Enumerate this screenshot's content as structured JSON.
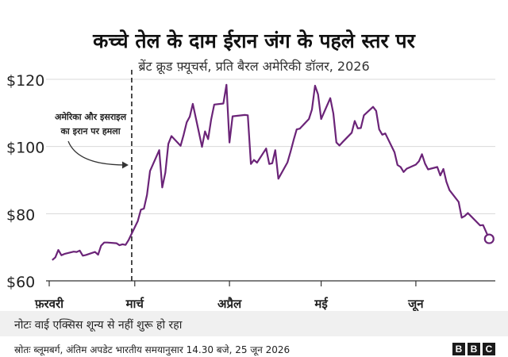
{
  "header": {
    "title": "कच्चे तेल के दाम ईरान जंग के पहले स्तर पर",
    "subtitle": "ब्रेंट क्रूड फ़्यूचर्स, प्रति बैरल अमेरिकी डॉलर, 2026"
  },
  "footer": {
    "note": "नोटः वाई एक्सिस शून्य से नहीं शुरू हो रहा",
    "source": "स्रोतः ब्लूमबर्ग, अंतिम अपडेट भारतीय समयानुसार 14.30 बजे, 25 जून 2026",
    "logo_letters": [
      "B",
      "B",
      "C"
    ]
  },
  "colors": {
    "line": "#6b2478",
    "text": "#222222",
    "grid": "#d8d8d8",
    "note_bg": "#f0f0f0"
  },
  "chart_data": {
    "type": "line",
    "title": "कच्चे तेल के दाम ईरान जंग के पहले स्तर पर",
    "subtitle": "ब्रेंट क्रूड फ़्यूचर्स, प्रति बैरल अमेरिकी डॉलर, 2026",
    "ylim": [
      60,
      120
    ],
    "yticks": [
      60,
      80,
      100,
      120
    ],
    "ytick_labels": [
      "$60",
      "$80",
      "$100",
      "$120"
    ],
    "x_range": [
      "2026-02-01",
      "2026-06-27"
    ],
    "x_ticks": [
      {
        "date": "2026-02-01",
        "label": "फ़रवरी"
      },
      {
        "date": "2026-03-01",
        "label": "मार्च"
      },
      {
        "date": "2026-04-01",
        "label": "अप्रैल"
      },
      {
        "date": "2026-05-01",
        "label": "मई"
      },
      {
        "date": "2026-06-01",
        "label": "जून"
      }
    ],
    "grid": true,
    "annotation": {
      "date": "2026-02-28",
      "lines": [
        "अमेरिका और इसराइल",
        "का इरान पर हमला"
      ]
    },
    "series": [
      {
        "points": [
          [
            "2026-02-02",
            66.2
          ],
          [
            "2026-02-03",
            67.0
          ],
          [
            "2026-02-04",
            69.2
          ],
          [
            "2026-02-05",
            67.6
          ],
          [
            "2026-02-06",
            68.0
          ],
          [
            "2026-02-09",
            68.7
          ],
          [
            "2026-02-10",
            68.6
          ],
          [
            "2026-02-11",
            69.0
          ],
          [
            "2026-02-12",
            67.5
          ],
          [
            "2026-02-13",
            67.7
          ],
          [
            "2026-02-16",
            68.6
          ],
          [
            "2026-02-17",
            67.8
          ],
          [
            "2026-02-18",
            70.5
          ],
          [
            "2026-02-19",
            71.4
          ],
          [
            "2026-02-20",
            71.4
          ],
          [
            "2026-02-23",
            71.2
          ],
          [
            "2026-02-24",
            70.6
          ],
          [
            "2026-02-25",
            70.9
          ],
          [
            "2026-02-26",
            70.7
          ],
          [
            "2026-02-27",
            72.2
          ],
          [
            "2026-03-02",
            77.8
          ],
          [
            "2026-03-03",
            81.2
          ],
          [
            "2026-03-04",
            81.5
          ],
          [
            "2026-03-05",
            85.6
          ],
          [
            "2026-03-06",
            92.7
          ],
          [
            "2026-03-09",
            98.9
          ],
          [
            "2026-03-10",
            87.8
          ],
          [
            "2026-03-11",
            92.2
          ],
          [
            "2026-03-12",
            100.8
          ],
          [
            "2026-03-13",
            103.1
          ],
          [
            "2026-03-16",
            100.2
          ],
          [
            "2026-03-17",
            103.5
          ],
          [
            "2026-03-18",
            107.2
          ],
          [
            "2026-03-19",
            108.9
          ],
          [
            "2026-03-20",
            112.7
          ],
          [
            "2026-03-23",
            99.9
          ],
          [
            "2026-03-24",
            104.5
          ],
          [
            "2026-03-25",
            102.2
          ],
          [
            "2026-03-26",
            108.0
          ],
          [
            "2026-03-27",
            112.5
          ],
          [
            "2026-03-30",
            112.8
          ],
          [
            "2026-03-31",
            118.4
          ],
          [
            "2026-04-01",
            101.2
          ],
          [
            "2026-04-02",
            109.0
          ],
          [
            "2026-04-06",
            109.4
          ],
          [
            "2026-04-07",
            109.3
          ],
          [
            "2026-04-08",
            94.8
          ],
          [
            "2026-04-09",
            96.0
          ],
          [
            "2026-04-10",
            95.2
          ],
          [
            "2026-04-13",
            99.4
          ],
          [
            "2026-04-14",
            94.8
          ],
          [
            "2026-04-15",
            95.0
          ],
          [
            "2026-04-16",
            98.9
          ],
          [
            "2026-04-17",
            90.4
          ],
          [
            "2026-04-20",
            95.3
          ],
          [
            "2026-04-21",
            98.5
          ],
          [
            "2026-04-22",
            101.9
          ],
          [
            "2026-04-23",
            105.1
          ],
          [
            "2026-04-24",
            105.3
          ],
          [
            "2026-04-27",
            108.2
          ],
          [
            "2026-04-28",
            111.0
          ],
          [
            "2026-04-29",
            118.1
          ],
          [
            "2026-04-30",
            115.5
          ],
          [
            "2026-05-01",
            108.2
          ],
          [
            "2026-05-04",
            114.4
          ],
          [
            "2026-05-05",
            109.8
          ],
          [
            "2026-05-06",
            101.2
          ],
          [
            "2026-05-07",
            100.3
          ],
          [
            "2026-05-08",
            101.3
          ],
          [
            "2026-05-11",
            104.1
          ],
          [
            "2026-05-12",
            107.6
          ],
          [
            "2026-05-13",
            105.4
          ],
          [
            "2026-05-14",
            105.5
          ],
          [
            "2026-05-15",
            109.3
          ],
          [
            "2026-05-18",
            111.8
          ],
          [
            "2026-05-19",
            110.6
          ],
          [
            "2026-05-20",
            105.1
          ],
          [
            "2026-05-21",
            103.5
          ],
          [
            "2026-05-22",
            103.9
          ],
          [
            "2026-05-25",
            98.3
          ],
          [
            "2026-05-26",
            94.5
          ],
          [
            "2026-05-27",
            93.9
          ],
          [
            "2026-05-28",
            92.4
          ],
          [
            "2026-05-29",
            93.4
          ],
          [
            "2026-06-01",
            94.6
          ],
          [
            "2026-06-02",
            95.6
          ],
          [
            "2026-06-03",
            97.7
          ],
          [
            "2026-06-04",
            94.9
          ],
          [
            "2026-06-05",
            93.2
          ],
          [
            "2026-06-08",
            93.9
          ],
          [
            "2026-06-09",
            91.4
          ],
          [
            "2026-06-10",
            93.3
          ],
          [
            "2026-06-11",
            89.5
          ],
          [
            "2026-06-12",
            87.0
          ],
          [
            "2026-06-15",
            83.5
          ],
          [
            "2026-06-16",
            78.8
          ],
          [
            "2026-06-17",
            79.3
          ],
          [
            "2026-06-18",
            80.2
          ],
          [
            "2026-06-19",
            79.3
          ],
          [
            "2026-06-22",
            76.5
          ],
          [
            "2026-06-23",
            76.6
          ],
          [
            "2026-06-25",
            72.5
          ]
        ]
      }
    ]
  }
}
